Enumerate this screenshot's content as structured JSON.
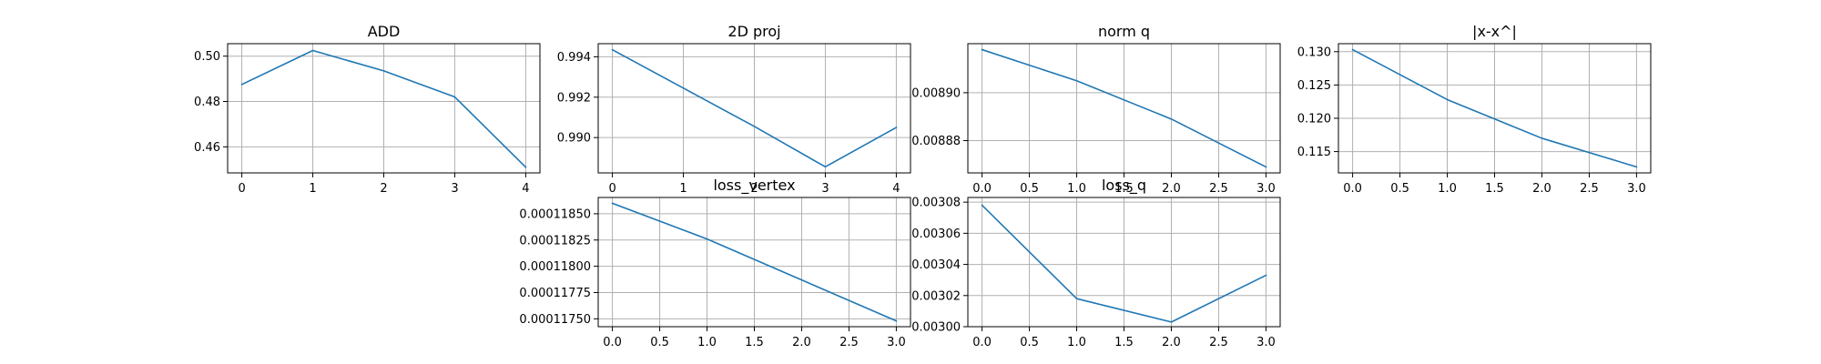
{
  "figure": {
    "line_color": "#1f77b4",
    "grid_color": "#b0b0b0"
  },
  "chart_data": [
    {
      "type": "line",
      "title": "ADD",
      "x": [
        0,
        1,
        2,
        3,
        4
      ],
      "series": [
        {
          "values": [
            0.4875,
            0.5025,
            0.4935,
            0.482,
            0.451
          ]
        }
      ],
      "xlim": [
        -0.2,
        4.2
      ],
      "ylim": [
        0.4485,
        0.5055
      ],
      "xticks": [
        "0",
        "1",
        "2",
        "3",
        "4"
      ],
      "yticks": [
        "0.46",
        "0.48",
        "0.50"
      ],
      "grid": true
    },
    {
      "type": "line",
      "title": "2D proj",
      "x": [
        0,
        1,
        2,
        3,
        4
      ],
      "series": [
        {
          "values": [
            0.99435,
            0.99245,
            0.99055,
            0.98855,
            0.9905
          ]
        }
      ],
      "xlim": [
        -0.2,
        4.2
      ],
      "ylim": [
        0.98825,
        0.99465
      ],
      "xticks": [
        "0",
        "1",
        "2",
        "3",
        "4"
      ],
      "yticks": [
        "0.990",
        "0.992",
        "0.994"
      ],
      "grid": true
    },
    {
      "type": "line",
      "title": "norm q",
      "x": [
        0.0,
        1.0,
        2.0,
        3.0
      ],
      "series": [
        {
          "values": [
            0.008918,
            0.008905,
            0.008889,
            0.008869
          ]
        }
      ],
      "xlim": [
        -0.15,
        3.15
      ],
      "ylim": [
        0.0088665,
        0.0089205
      ],
      "xticks": [
        "0.0",
        "0.5",
        "1.0",
        "1.5",
        "2.0",
        "2.5",
        "3.0"
      ],
      "yticks": [
        "0.00888",
        "0.00890"
      ],
      "grid": true
    },
    {
      "type": "line",
      "title": "|x-x^|",
      "x": [
        0.0,
        1.0,
        2.0,
        3.0
      ],
      "series": [
        {
          "values": [
            0.1303,
            0.1228,
            0.117,
            0.1127
          ]
        }
      ],
      "xlim": [
        -0.15,
        3.15
      ],
      "ylim": [
        0.1118,
        0.1312
      ],
      "xticks": [
        "0.0",
        "0.5",
        "1.0",
        "1.5",
        "2.0",
        "2.5",
        "3.0"
      ],
      "yticks": [
        "0.115",
        "0.120",
        "0.125",
        "0.130"
      ],
      "grid": true
    },
    {
      "type": "line",
      "title": "loss_vertex",
      "x": [
        0.0,
        1.0,
        2.0,
        3.0
      ],
      "series": [
        {
          "values": [
            0.0001186,
            0.00011826,
            0.00011787,
            0.00011748
          ]
        }
      ],
      "xlim": [
        -0.15,
        3.15
      ],
      "ylim": [
        0.000117425,
        0.000118655
      ],
      "xticks": [
        "0.0",
        "0.5",
        "1.0",
        "1.5",
        "2.0",
        "2.5",
        "3.0"
      ],
      "yticks": [
        "0.00011750",
        "0.00011775",
        "0.00011800",
        "0.00011825",
        "0.00011850"
      ],
      "grid": true
    },
    {
      "type": "line",
      "title": "loss_q",
      "x": [
        0.0,
        1.0,
        2.0,
        3.0
      ],
      "series": [
        {
          "values": [
            0.003078,
            0.003018,
            0.003003,
            0.003033
          ]
        }
      ],
      "xlim": [
        -0.15,
        3.15
      ],
      "ylim": [
        0.003,
        0.003083
      ],
      "xticks": [
        "0.0",
        "0.5",
        "1.0",
        "1.5",
        "2.0",
        "2.5",
        "3.0"
      ],
      "yticks": [
        "0.00300",
        "0.00302",
        "0.00304",
        "0.00306",
        "0.00308"
      ],
      "grid": true
    }
  ]
}
